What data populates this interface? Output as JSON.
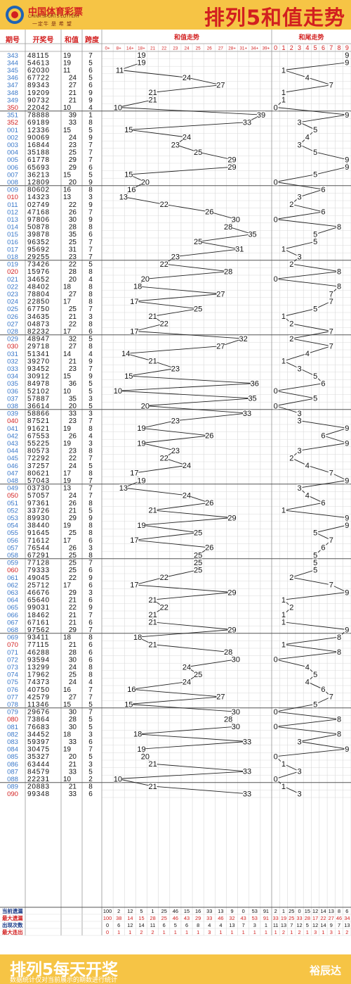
{
  "header": {
    "logo_title": "中国体育彩票",
    "logo_subtitle": "CHINA SPORTS LOTTERY",
    "logo_slogan": "一定牛 是 希 望",
    "page_title": "排列5和值走势"
  },
  "footer": {
    "title": "排列5每天开奖",
    "note": "数据统计仅对当前展示的期数进行统计",
    "brand": "裕辰达"
  },
  "colors": {
    "header_bg": "#f6c445",
    "red": "#d21f1f",
    "blue": "#3a78c9",
    "grid": "#d9d9d9"
  },
  "chart_data": {
    "type": "table",
    "columns": {
      "issue": "期号",
      "numbers": "开奖号",
      "sum": "和值",
      "span": "跨度",
      "sum_trend": "和值走势",
      "tail_trend": "和尾走势"
    },
    "sum_bins": [
      "0+",
      "8+",
      "14+",
      "18+",
      "21",
      "22",
      "23",
      "24",
      "25",
      "26",
      "27",
      "28+",
      "31+",
      "34+",
      "39+"
    ],
    "tail_bins": [
      "0",
      "1",
      "2",
      "3",
      "4",
      "5",
      "6",
      "7",
      "8",
      "9"
    ],
    "group_size": 10,
    "rows": [
      [
        "343",
        "48115",
        19,
        7
      ],
      [
        "344",
        "54613",
        19,
        5
      ],
      [
        "345",
        "62030",
        11,
        6
      ],
      [
        "346",
        "67722",
        24,
        5
      ],
      [
        "347",
        "89343",
        27,
        6
      ],
      [
        "348",
        "19209",
        21,
        9
      ],
      [
        "349",
        "90732",
        21,
        9
      ],
      [
        "350",
        "22042",
        10,
        4
      ],
      [
        "351",
        "78888",
        39,
        1
      ],
      [
        "352",
        "69189",
        33,
        8
      ],
      [
        "001",
        "12336",
        15,
        5
      ],
      [
        "002",
        "90069",
        24,
        9
      ],
      [
        "003",
        "16844",
        23,
        7
      ],
      [
        "004",
        "35188",
        25,
        7
      ],
      [
        "005",
        "61778",
        29,
        7
      ],
      [
        "006",
        "65693",
        29,
        6
      ],
      [
        "007",
        "36213",
        15,
        5
      ],
      [
        "008",
        "12809",
        20,
        9
      ],
      [
        "009",
        "80602",
        16,
        8
      ],
      [
        "010",
        "14323",
        13,
        3
      ],
      [
        "011",
        "02749",
        22,
        9
      ],
      [
        "012",
        "47168",
        26,
        7
      ],
      [
        "013",
        "97806",
        30,
        9
      ],
      [
        "014",
        "50878",
        28,
        8
      ],
      [
        "015",
        "39878",
        35,
        6
      ],
      [
        "016",
        "96352",
        25,
        7
      ],
      [
        "017",
        "95692",
        31,
        7
      ],
      [
        "018",
        "29255",
        23,
        7
      ],
      [
        "019",
        "73426",
        22,
        5
      ],
      [
        "020",
        "15976",
        28,
        8
      ],
      [
        "021",
        "34652",
        20,
        4
      ],
      [
        "022",
        "48402",
        18,
        8
      ],
      [
        "023",
        "78804",
        27,
        8
      ],
      [
        "024",
        "22850",
        17,
        8
      ],
      [
        "025",
        "67750",
        25,
        7
      ],
      [
        "026",
        "34635",
        21,
        3
      ],
      [
        "027",
        "04873",
        22,
        8
      ],
      [
        "028",
        "82232",
        17,
        6
      ],
      [
        "029",
        "48947",
        32,
        5
      ],
      [
        "030",
        "29718",
        27,
        8
      ],
      [
        "031",
        "51341",
        14,
        4
      ],
      [
        "032",
        "39270",
        21,
        9
      ],
      [
        "033",
        "93452",
        23,
        7
      ],
      [
        "034",
        "30912",
        15,
        9
      ],
      [
        "035",
        "84978",
        36,
        5
      ],
      [
        "036",
        "52102",
        10,
        5
      ],
      [
        "037",
        "57887",
        35,
        3
      ],
      [
        "038",
        "36614",
        20,
        5
      ],
      [
        "039",
        "58866",
        33,
        3
      ],
      [
        "040",
        "87521",
        23,
        7
      ],
      [
        "041",
        "91621",
        19,
        8
      ],
      [
        "042",
        "67553",
        26,
        4
      ],
      [
        "043",
        "55225",
        19,
        3
      ],
      [
        "044",
        "80573",
        23,
        8
      ],
      [
        "045",
        "72292",
        22,
        7
      ],
      [
        "046",
        "37257",
        24,
        5
      ],
      [
        "047",
        "80621",
        17,
        8
      ],
      [
        "048",
        "57043",
        19,
        7
      ],
      [
        "049",
        "03730",
        13,
        7
      ],
      [
        "050",
        "57057",
        24,
        7
      ],
      [
        "051",
        "97361",
        26,
        8
      ],
      [
        "052",
        "33726",
        21,
        5
      ],
      [
        "053",
        "89930",
        29,
        9
      ],
      [
        "054",
        "38440",
        19,
        8
      ],
      [
        "055",
        "91645",
        25,
        8
      ],
      [
        "056",
        "71612",
        17,
        6
      ],
      [
        "057",
        "76544",
        26,
        3
      ],
      [
        "058",
        "67291",
        25,
        8
      ],
      [
        "059",
        "77128",
        25,
        7
      ],
      [
        "060",
        "79333",
        25,
        6
      ],
      [
        "061",
        "49045",
        22,
        9
      ],
      [
        "062",
        "25712",
        17,
        6
      ],
      [
        "063",
        "46676",
        29,
        3
      ],
      [
        "064",
        "65640",
        21,
        6
      ],
      [
        "065",
        "99031",
        22,
        9
      ],
      [
        "066",
        "18462",
        21,
        7
      ],
      [
        "067",
        "67161",
        21,
        6
      ],
      [
        "068",
        "97562",
        29,
        7
      ],
      [
        "069",
        "93411",
        18,
        8
      ],
      [
        "070",
        "77115",
        21,
        6
      ],
      [
        "071",
        "46288",
        28,
        6
      ],
      [
        "072",
        "93594",
        30,
        6
      ],
      [
        "073",
        "13299",
        24,
        8
      ],
      [
        "074",
        "17962",
        25,
        8
      ],
      [
        "075",
        "74373",
        24,
        4
      ],
      [
        "076",
        "40750",
        16,
        7
      ],
      [
        "077",
        "42579",
        27,
        7
      ],
      [
        "078",
        "11346",
        15,
        5
      ],
      [
        "079",
        "29676",
        30,
        7
      ],
      [
        "080",
        "73864",
        28,
        5
      ],
      [
        "081",
        "76683",
        30,
        5
      ],
      [
        "082",
        "34452",
        18,
        3
      ],
      [
        "083",
        "59397",
        33,
        6
      ],
      [
        "084",
        "30475",
        19,
        7
      ],
      [
        "085",
        "35327",
        20,
        5
      ],
      [
        "086",
        "63444",
        21,
        3
      ],
      [
        "087",
        "84579",
        33,
        5
      ],
      [
        "088",
        "22231",
        10,
        2
      ],
      [
        "089",
        "20883",
        21,
        8
      ],
      [
        "090",
        "99348",
        33,
        6
      ]
    ],
    "stats": {
      "labels": [
        "当前遗漏",
        "最大遗漏",
        "出现次数",
        "最大连出"
      ],
      "sum": [
        [
          100,
          2,
          12,
          5,
          1,
          25,
          46,
          15,
          16,
          33,
          13,
          9,
          0,
          53,
          91
        ],
        [
          100,
          38,
          14,
          15,
          28,
          25,
          46,
          43,
          29,
          33,
          46,
          32,
          43,
          53,
          91
        ],
        [
          0,
          6,
          12,
          14,
          11,
          6,
          5,
          6,
          8,
          4,
          4,
          13,
          7,
          3,
          1
        ],
        [
          0,
          1,
          1,
          2,
          2,
          1,
          1,
          1,
          1,
          3,
          1,
          1,
          1,
          1,
          1
        ]
      ],
      "tail": [
        [
          2,
          1,
          25,
          0,
          15,
          12,
          14,
          13,
          8,
          6
        ],
        [
          33,
          19,
          25,
          33,
          28,
          17,
          22,
          27,
          46,
          34
        ],
        [
          11,
          13,
          7,
          12,
          5,
          12,
          14,
          9,
          7,
          13
        ],
        [
          1,
          2,
          1,
          2,
          1,
          3,
          1,
          3,
          1,
          2
        ]
      ]
    }
  }
}
